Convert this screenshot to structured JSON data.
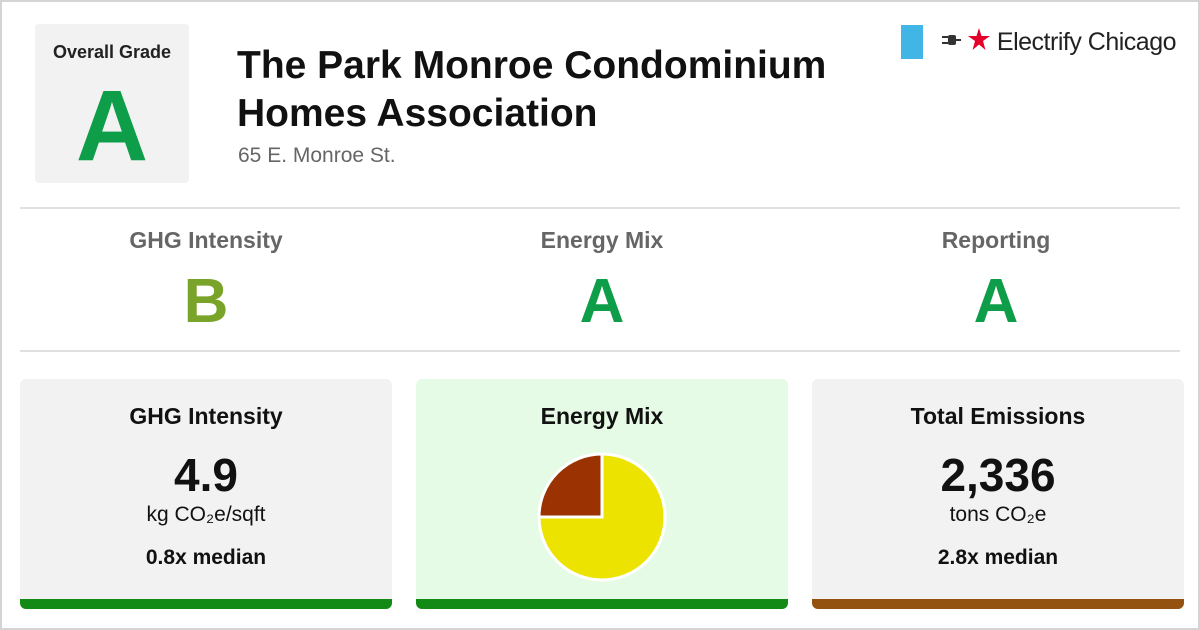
{
  "header": {
    "overall_label": "Overall Grade",
    "overall_grade": "A",
    "overall_color": "#0e9e4a",
    "title": "The Park Monroe Condominium Homes Association",
    "address": "65 E. Monroe St.",
    "brand": "Electrify Chicago"
  },
  "subgrades": [
    {
      "label": "GHG Intensity",
      "grade": "B",
      "color": "#7aa32a"
    },
    {
      "label": "Energy Mix",
      "grade": "A",
      "color": "#0e9e4a"
    },
    {
      "label": "Reporting",
      "grade": "A",
      "color": "#0e9e4a"
    }
  ],
  "cards": {
    "ghg": {
      "title": "GHG Intensity",
      "value": "4.9",
      "unit": "kg CO₂e/sqft",
      "median": "0.8x median",
      "background": "#f2f2f2",
      "bar_color": "#138a15"
    },
    "mix": {
      "title": "Energy Mix",
      "background": "#e6fbe6",
      "bar_color": "#138a15"
    },
    "emissions": {
      "title": "Total Emissions",
      "value": "2,336",
      "unit": "tons CO₂e",
      "median": "2.8x median",
      "background": "#f2f2f2",
      "bar_color": "#93520f"
    }
  },
  "chart_data": {
    "type": "pie",
    "slices": [
      {
        "value": 75,
        "color": "#ece300"
      },
      {
        "value": 25,
        "color": "#9a3202"
      }
    ]
  }
}
